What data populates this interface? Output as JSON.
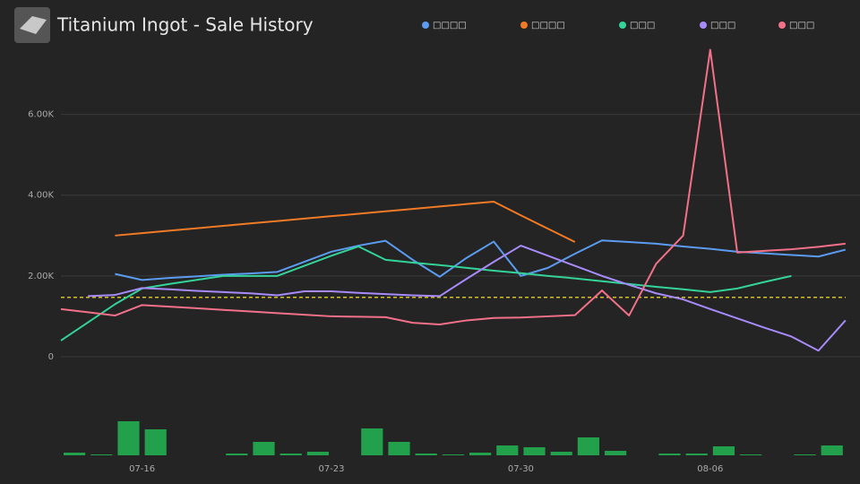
{
  "chart_data": {
    "type": "line",
    "title": "Titanium Ingot - Sale History",
    "categories": [
      null,
      null,
      null,
      "07-16",
      null,
      null,
      null,
      null,
      null,
      null,
      "07-23",
      null,
      null,
      null,
      null,
      null,
      null,
      "07-30",
      null,
      null,
      null,
      null,
      null,
      null,
      "08-06",
      null,
      null,
      null,
      null,
      null
    ],
    "ylim": [
      0,
      7900
    ],
    "yticks": [
      0,
      {
        "value": 2000,
        "label": "2.00K"
      },
      {
        "value": 4000,
        "label": "4.00K"
      },
      {
        "value": 6000,
        "label": "6.00K"
      }
    ],
    "grid": true,
    "legend": "top",
    "series": [
      {
        "name": "□□□□",
        "color": "#5b9cf0",
        "values": [
          null,
          null,
          2050,
          1900,
          1950,
          1990,
          2030,
          2060,
          2100,
          2350,
          2600,
          2750,
          2870,
          2400,
          1980,
          2450,
          2850,
          2000,
          2200,
          2550,
          2880,
          2840,
          2800,
          2730,
          2670,
          2600,
          2560,
          2520,
          2480,
          2650
        ]
      },
      {
        "name": "□□□□",
        "color": "#f07a26",
        "values": [
          null,
          null,
          3000,
          3060,
          3120,
          3180,
          3240,
          3300,
          3360,
          3420,
          3480,
          3540,
          3600,
          3660,
          3720,
          3780,
          3840,
          3500,
          3170,
          2840,
          null,
          null,
          null,
          null,
          null,
          null,
          null,
          null,
          null,
          null
        ]
      },
      {
        "name": "□□□",
        "color": "#34d399",
        "values": [
          400,
          850,
          1300,
          1690,
          1800,
          1900,
          2000,
          2000,
          2000,
          2250,
          2500,
          2730,
          2400,
          2330,
          2270,
          2200,
          2130,
          2070,
          2000,
          1940,
          1870,
          1800,
          1730,
          1670,
          1600,
          1690,
          1850,
          2000,
          null,
          null
        ]
      },
      {
        "name": "□□□",
        "color": "#a78bfa",
        "values": [
          null,
          1500,
          1530,
          1700,
          1670,
          1630,
          1600,
          1570,
          1520,
          1620,
          1620,
          1580,
          1550,
          1520,
          1500,
          1930,
          2350,
          2750,
          2500,
          2250,
          2000,
          1780,
          1570,
          1420,
          1180,
          950,
          720,
          500,
          150,
          900
        ]
      },
      {
        "name": "□□□",
        "color": "#f27189",
        "values": [
          1180,
          1100,
          1020,
          1280,
          1240,
          1200,
          1160,
          1120,
          1080,
          1040,
          1000,
          990,
          980,
          840,
          800,
          900,
          960,
          970,
          1000,
          1030,
          1640,
          1020,
          2300,
          3000,
          7600,
          2580,
          2620,
          2660,
          2720,
          2800
        ]
      }
    ],
    "reference_line": {
      "value": 1470,
      "color": "#d4c020"
    },
    "volume": {
      "color": "#22a04b",
      "ylim": [
        0,
        40
      ],
      "values": [
        3,
        1,
        38,
        29,
        0,
        0,
        2,
        15,
        2,
        4,
        0,
        30,
        15,
        2,
        1,
        3,
        11,
        9,
        4,
        20,
        5,
        0,
        2,
        2,
        10,
        1,
        0,
        1,
        11,
        0
      ]
    }
  }
}
